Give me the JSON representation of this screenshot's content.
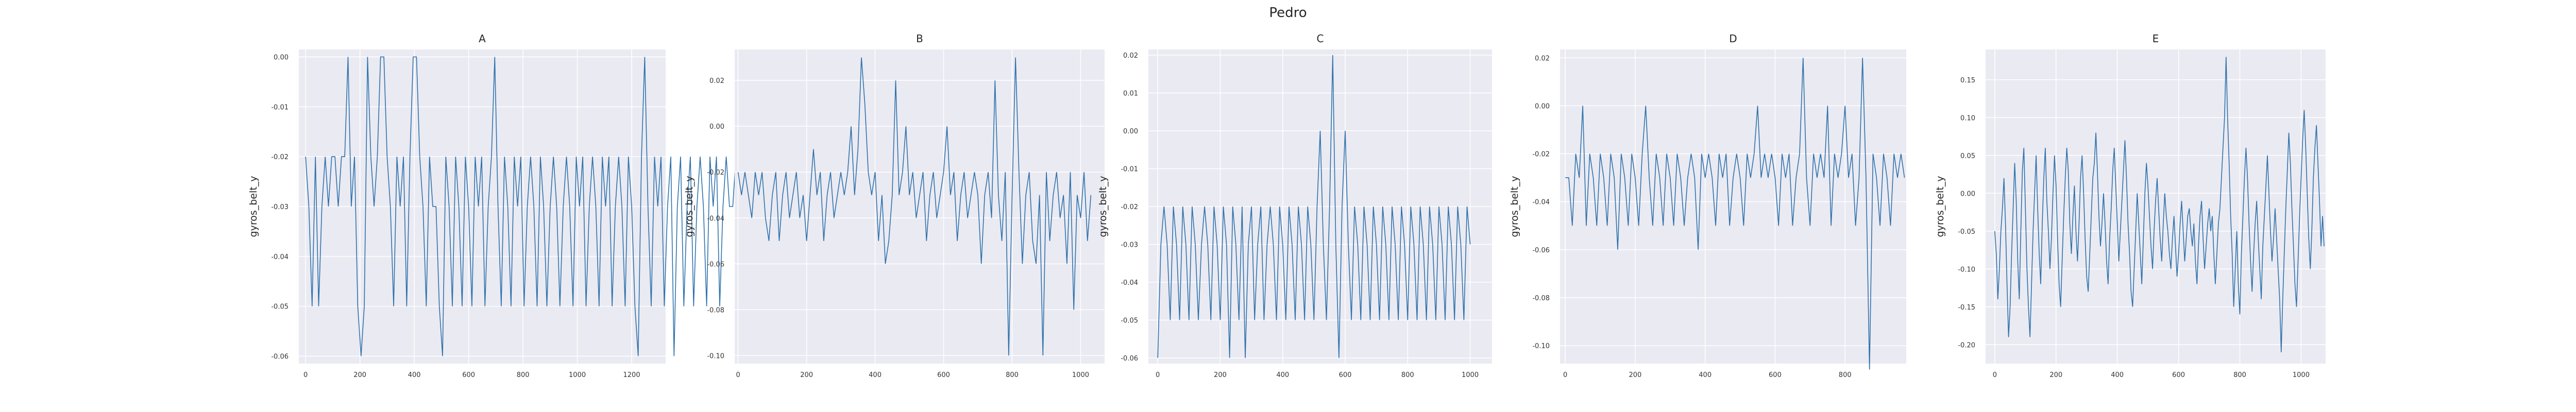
{
  "figure_title": "Pedro",
  "colors": {
    "line": "#2f72ac",
    "panel_bg": "#eaeaf2",
    "grid": "#ffffff",
    "text": "#262626"
  },
  "chart_data": [
    {
      "type": "line",
      "title": "A",
      "ylabel": "gyros_belt_y",
      "xlabel": "",
      "xlim": [
        -25,
        1325
      ],
      "ylim": [
        -0.0615,
        0.0015
      ],
      "xticks": [
        0,
        200,
        400,
        600,
        800,
        1000,
        1200
      ],
      "yticks": [
        -0.06,
        -0.05,
        -0.04,
        -0.03,
        -0.02,
        -0.01,
        0.0
      ],
      "ytick_labels": [
        "-0.06",
        "-0.05",
        "-0.04",
        "-0.03",
        "-0.02",
        "-0.01",
        "0.00"
      ],
      "grid": true,
      "step": 12,
      "values": [
        -0.02,
        -0.03,
        -0.05,
        -0.02,
        -0.05,
        -0.03,
        -0.02,
        -0.03,
        -0.02,
        -0.02,
        -0.03,
        -0.02,
        -0.02,
        0.0,
        -0.03,
        -0.02,
        -0.05,
        -0.06,
        -0.05,
        0.0,
        -0.02,
        -0.03,
        -0.02,
        0.0,
        0.0,
        -0.02,
        -0.03,
        -0.05,
        -0.02,
        -0.03,
        -0.02,
        -0.05,
        -0.02,
        0.0,
        0.0,
        -0.02,
        -0.03,
        -0.05,
        -0.02,
        -0.03,
        -0.03,
        -0.05,
        -0.06,
        -0.02,
        -0.03,
        -0.05,
        -0.02,
        -0.03,
        -0.05,
        -0.02,
        -0.03,
        -0.05,
        -0.02,
        -0.03,
        -0.02,
        -0.05,
        -0.03,
        -0.02,
        0.0,
        -0.03,
        -0.05,
        -0.02,
        -0.03,
        -0.05,
        -0.02,
        -0.03,
        -0.02,
        -0.05,
        -0.03,
        -0.02,
        -0.03,
        -0.05,
        -0.02,
        -0.03,
        -0.05,
        -0.03,
        -0.02,
        -0.03,
        -0.05,
        -0.03,
        -0.02,
        -0.03,
        -0.05,
        -0.02,
        -0.03,
        -0.02,
        -0.05,
        -0.03,
        -0.02,
        -0.03,
        -0.05,
        -0.02,
        -0.03,
        -0.02,
        -0.05,
        -0.03,
        -0.02,
        -0.03,
        -0.05,
        -0.02,
        -0.03,
        -0.05,
        -0.06,
        -0.02,
        0.0,
        -0.03,
        -0.05,
        -0.02,
        -0.03,
        -0.02,
        -0.05,
        -0.03,
        -0.02,
        -0.06,
        -0.03,
        -0.02,
        -0.05,
        -0.03,
        -0.02,
        -0.05,
        -0.03,
        -0.02,
        -0.03,
        -0.05,
        -0.02,
        -0.03,
        -0.02,
        -0.05,
        -0.03,
        -0.02,
        -0.03,
        -0.03,
        -0.02,
        -0.02,
        -0.03
      ]
    },
    {
      "type": "line",
      "title": "B",
      "ylabel": "gyros_belt_y",
      "xlabel": "",
      "xlim": [
        -10,
        1070
      ],
      "ylim": [
        -0.1035,
        0.0335
      ],
      "xticks": [
        0,
        200,
        400,
        600,
        800,
        1000
      ],
      "yticks": [
        -0.1,
        -0.08,
        -0.06,
        -0.04,
        -0.02,
        0.0,
        0.02
      ],
      "ytick_labels": [
        "-0.10",
        "-0.08",
        "-0.06",
        "-0.04",
        "-0.02",
        "0.00",
        "0.02"
      ],
      "grid": true,
      "step": 10,
      "values": [
        -0.02,
        -0.03,
        -0.02,
        -0.03,
        -0.04,
        -0.02,
        -0.03,
        -0.02,
        -0.04,
        -0.05,
        -0.03,
        -0.02,
        -0.05,
        -0.03,
        -0.02,
        -0.04,
        -0.03,
        -0.02,
        -0.04,
        -0.03,
        -0.05,
        -0.03,
        -0.01,
        -0.03,
        -0.02,
        -0.05,
        -0.03,
        -0.02,
        -0.04,
        -0.03,
        -0.02,
        -0.03,
        -0.02,
        0.0,
        -0.03,
        -0.01,
        0.03,
        0.01,
        -0.02,
        -0.03,
        -0.02,
        -0.05,
        -0.03,
        -0.06,
        -0.05,
        -0.03,
        0.02,
        -0.03,
        -0.02,
        0.0,
        -0.03,
        -0.02,
        -0.04,
        -0.03,
        -0.02,
        -0.05,
        -0.03,
        -0.02,
        -0.04,
        -0.03,
        -0.02,
        0.0,
        -0.03,
        -0.02,
        -0.05,
        -0.03,
        -0.02,
        -0.04,
        -0.03,
        -0.02,
        -0.03,
        -0.06,
        -0.03,
        -0.02,
        -0.04,
        0.02,
        -0.03,
        -0.05,
        -0.02,
        -0.1,
        -0.03,
        0.03,
        -0.02,
        -0.06,
        -0.03,
        -0.02,
        -0.05,
        -0.06,
        -0.03,
        -0.1,
        -0.02,
        -0.05,
        -0.03,
        -0.02,
        -0.04,
        -0.03,
        -0.06,
        -0.02,
        -0.08,
        -0.03,
        -0.04,
        -0.02,
        -0.05,
        -0.03
      ]
    },
    {
      "type": "line",
      "title": "C",
      "ylabel": "gyros_belt_y",
      "xlabel": "",
      "xlim": [
        -30,
        1070
      ],
      "ylim": [
        -0.0615,
        0.0215
      ],
      "xticks": [
        0,
        200,
        400,
        600,
        800,
        1000
      ],
      "yticks": [
        -0.06,
        -0.05,
        -0.04,
        -0.03,
        -0.02,
        -0.01,
        0.0,
        0.01,
        0.02
      ],
      "ytick_labels": [
        "-0.06",
        "-0.05",
        "-0.04",
        "-0.03",
        "-0.02",
        "-0.01",
        "0.00",
        "0.01",
        "0.02"
      ],
      "grid": true,
      "step": 10,
      "values": [
        -0.06,
        -0.03,
        -0.02,
        -0.03,
        -0.05,
        -0.02,
        -0.03,
        -0.05,
        -0.02,
        -0.03,
        -0.05,
        -0.02,
        -0.03,
        -0.05,
        -0.03,
        -0.02,
        -0.03,
        -0.05,
        -0.02,
        -0.03,
        -0.05,
        -0.02,
        -0.03,
        -0.06,
        -0.02,
        -0.03,
        -0.05,
        -0.02,
        -0.06,
        -0.03,
        -0.02,
        -0.05,
        -0.03,
        -0.02,
        -0.05,
        -0.03,
        -0.02,
        -0.03,
        -0.05,
        -0.02,
        -0.03,
        -0.05,
        -0.02,
        -0.03,
        -0.05,
        -0.02,
        -0.03,
        -0.05,
        -0.02,
        -0.03,
        -0.05,
        -0.02,
        0.0,
        -0.03,
        -0.05,
        -0.02,
        0.02,
        -0.03,
        -0.06,
        -0.02,
        0.0,
        -0.03,
        -0.05,
        -0.02,
        -0.03,
        -0.05,
        -0.02,
        -0.03,
        -0.05,
        -0.02,
        -0.03,
        -0.05,
        -0.02,
        -0.03,
        -0.05,
        -0.02,
        -0.03,
        -0.05,
        -0.02,
        -0.03,
        -0.05,
        -0.02,
        -0.03,
        -0.05,
        -0.02,
        -0.03,
        -0.05,
        -0.02,
        -0.03,
        -0.05,
        -0.02,
        -0.03,
        -0.05,
        -0.02,
        -0.03,
        -0.05,
        -0.02,
        -0.03,
        -0.05,
        -0.02,
        -0.03
      ]
    },
    {
      "type": "line",
      "title": "D",
      "ylabel": "gyros_belt_y",
      "xlabel": "",
      "xlim": [
        -15,
        975
      ],
      "ylim": [
        -0.1075,
        0.0235
      ],
      "xticks": [
        0,
        200,
        400,
        600,
        800
      ],
      "yticks": [
        -0.1,
        -0.08,
        -0.06,
        -0.04,
        -0.02,
        0.0,
        0.02
      ],
      "ytick_labels": [
        "-0.10",
        "-0.08",
        "-0.06",
        "-0.04",
        "-0.02",
        "0.00",
        "0.02"
      ],
      "grid": true,
      "step": 10,
      "values": [
        -0.03,
        -0.03,
        -0.05,
        -0.02,
        -0.03,
        0.0,
        -0.05,
        -0.02,
        -0.03,
        -0.05,
        -0.02,
        -0.03,
        -0.05,
        -0.02,
        -0.03,
        -0.06,
        -0.02,
        -0.03,
        -0.05,
        -0.02,
        -0.03,
        -0.05,
        -0.02,
        0.0,
        -0.03,
        -0.05,
        -0.02,
        -0.03,
        -0.05,
        -0.02,
        -0.03,
        -0.05,
        -0.02,
        -0.03,
        -0.05,
        -0.03,
        -0.02,
        -0.03,
        -0.06,
        -0.02,
        -0.03,
        -0.02,
        -0.03,
        -0.05,
        -0.02,
        -0.03,
        -0.02,
        -0.05,
        -0.03,
        -0.02,
        -0.03,
        -0.05,
        -0.02,
        -0.03,
        -0.02,
        0.0,
        -0.03,
        -0.02,
        -0.03,
        -0.02,
        -0.03,
        -0.05,
        -0.02,
        -0.03,
        -0.02,
        -0.05,
        -0.03,
        -0.02,
        0.02,
        -0.03,
        -0.05,
        -0.02,
        -0.03,
        -0.02,
        -0.03,
        0.0,
        -0.05,
        -0.02,
        -0.03,
        -0.02,
        0.0,
        -0.03,
        -0.02,
        -0.05,
        -0.03,
        0.02,
        -0.03,
        -0.11,
        -0.02,
        -0.03,
        -0.05,
        -0.02,
        -0.03,
        -0.05,
        -0.02,
        -0.03,
        -0.02,
        -0.03
      ]
    },
    {
      "type": "line",
      "title": "E",
      "ylabel": "gyros_belt_y",
      "xlabel": "",
      "xlim": [
        -30,
        1080
      ],
      "ylim": [
        -0.225,
        0.19
      ],
      "xticks": [
        0,
        200,
        400,
        600,
        800,
        1000
      ],
      "yticks": [
        -0.2,
        -0.15,
        -0.1,
        -0.05,
        0.0,
        0.05,
        0.1,
        0.15
      ],
      "ytick_labels": [
        "-0.20",
        "-0.15",
        "-0.10",
        "-0.05",
        "0.00",
        "0.05",
        "0.10",
        "0.15"
      ],
      "grid": true,
      "step": 5,
      "values": [
        -0.05,
        -0.08,
        -0.14,
        -0.1,
        -0.05,
        -0.02,
        0.02,
        -0.04,
        -0.12,
        -0.19,
        -0.15,
        -0.08,
        -0.02,
        0.04,
        -0.01,
        -0.09,
        -0.14,
        -0.05,
        0.03,
        0.06,
        -0.02,
        -0.1,
        -0.15,
        -0.19,
        -0.12,
        -0.05,
        0.0,
        0.05,
        -0.02,
        -0.08,
        -0.12,
        -0.04,
        0.02,
        0.06,
        -0.01,
        -0.05,
        -0.1,
        -0.06,
        0.0,
        0.05,
        0.01,
        -0.06,
        -0.12,
        -0.15,
        -0.09,
        -0.03,
        0.02,
        0.06,
        0.03,
        -0.04,
        -0.08,
        -0.03,
        0.01,
        -0.05,
        -0.09,
        -0.04,
        0.02,
        0.05,
        0.0,
        -0.06,
        -0.11,
        -0.13,
        -0.08,
        -0.03,
        0.02,
        0.04,
        0.08,
        0.03,
        -0.03,
        -0.07,
        -0.04,
        0.0,
        -0.04,
        -0.09,
        -0.12,
        -0.06,
        -0.02,
        0.03,
        0.06,
        0.01,
        -0.04,
        -0.09,
        -0.05,
        -0.01,
        0.03,
        0.07,
        0.02,
        -0.04,
        -0.08,
        -0.13,
        -0.15,
        -0.1,
        -0.05,
        0.0,
        -0.04,
        -0.08,
        -0.12,
        -0.06,
        0.0,
        0.04,
        0.01,
        -0.03,
        -0.07,
        -0.1,
        -0.05,
        -0.01,
        0.02,
        -0.02,
        -0.06,
        -0.09,
        -0.04,
        0.0,
        -0.03,
        -0.05,
        -0.08,
        -0.1,
        -0.06,
        -0.03,
        -0.07,
        -0.11,
        -0.08,
        -0.04,
        -0.01,
        -0.05,
        -0.09,
        -0.06,
        -0.03,
        -0.02,
        -0.05,
        -0.07,
        -0.04,
        -0.09,
        -0.12,
        -0.07,
        -0.03,
        -0.01,
        -0.06,
        -0.1,
        -0.07,
        -0.04,
        -0.02,
        -0.05,
        -0.03,
        -0.08,
        -0.12,
        -0.08,
        -0.04,
        -0.02,
        0.02,
        0.06,
        0.1,
        0.18,
        0.1,
        0.04,
        -0.03,
        -0.08,
        -0.15,
        -0.1,
        -0.05,
        -0.12,
        -0.16,
        -0.08,
        -0.03,
        0.02,
        0.06,
        0.02,
        -0.04,
        -0.09,
        -0.13,
        -0.08,
        -0.04,
        -0.01,
        -0.06,
        -0.1,
        -0.14,
        -0.07,
        -0.03,
        0.01,
        0.05,
        0.0,
        -0.05,
        -0.09,
        -0.06,
        -0.02,
        -0.06,
        -0.1,
        -0.14,
        -0.21,
        -0.14,
        -0.08,
        -0.02,
        0.03,
        0.08,
        0.04,
        -0.02,
        -0.07,
        -0.12,
        -0.15,
        -0.09,
        -0.03,
        0.02,
        0.07,
        0.11,
        0.06,
        0.0,
        -0.06,
        -0.1,
        -0.05,
        0.02,
        0.06,
        0.09,
        0.04,
        -0.01,
        -0.07,
        -0.03,
        -0.07
      ]
    }
  ]
}
